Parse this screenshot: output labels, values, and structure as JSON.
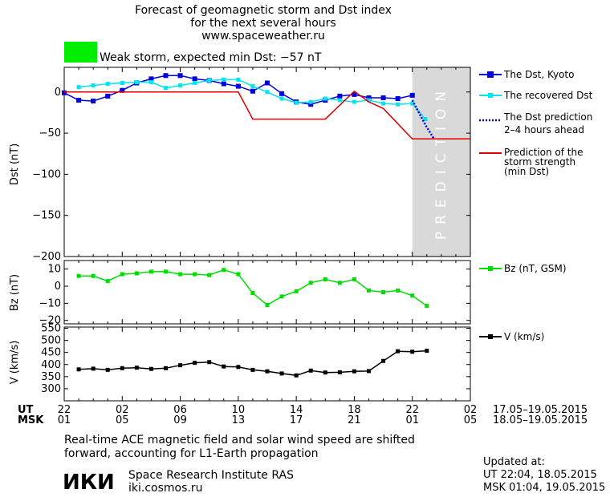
{
  "header": {
    "title_line1": "Forecast of geomagnetic storm and Dst index",
    "title_line2": "for the next several hours",
    "url": "www.spaceweather.ru",
    "storm_label": "Weak storm, expected min Dst: −57 nT",
    "storm_color": "#00ee00"
  },
  "colors": {
    "dst_kyoto": "#0000dd",
    "dst_recovered": "#00e5ee",
    "prediction_line": "#dd0000",
    "bz": "#00dd00",
    "v": "#000000",
    "prediction_band": "#d9d9d9"
  },
  "chart_data": [
    {
      "type": "line",
      "panel": "dst",
      "ylabel": "Dst (nT)",
      "ylim": [
        -200,
        30
      ],
      "yticks": [
        0,
        -50,
        -100,
        -150,
        -200
      ],
      "xlim": [
        0,
        28
      ],
      "prediction_region": [
        24,
        28
      ],
      "prediction_label": "PREDICTION",
      "series": [
        {
          "name": "The Dst, Kyoto",
          "markers": true,
          "x": [
            0,
            1,
            2,
            3,
            4,
            5,
            6,
            7,
            8,
            9,
            10,
            11,
            12,
            13,
            14,
            15,
            16,
            17,
            18,
            19,
            20,
            21,
            22,
            23,
            24
          ],
          "y": [
            -1,
            -10,
            -11,
            -5,
            2,
            11,
            16,
            20,
            20,
            16,
            14,
            10,
            7,
            1,
            11,
            -2,
            -12,
            -15,
            -10,
            -5,
            -3,
            -7,
            -7,
            -8,
            -4
          ]
        },
        {
          "name": "The recovered Dst",
          "markers": true,
          "x": [
            1,
            2,
            3,
            4,
            5,
            6,
            7,
            8,
            9,
            10,
            11,
            12,
            13,
            14,
            15,
            16,
            17,
            18,
            19,
            20,
            21,
            22,
            23,
            24,
            24.9
          ],
          "y": [
            6,
            8,
            10,
            11,
            12,
            12,
            5,
            8,
            11,
            14,
            15,
            15,
            7,
            0,
            -8,
            -13,
            -12,
            -8,
            -10,
            -12,
            -10,
            -14,
            -15,
            -14,
            -33
          ]
        },
        {
          "name": "The Dst prediction\n2–4 hours ahead",
          "dotted": true,
          "x": [
            24,
            24.9,
            25.5
          ],
          "y": [
            -10,
            -40,
            -57
          ]
        },
        {
          "name": "Prediction of the\nstorm strength\n(min Dst)",
          "x": [
            0,
            3,
            12,
            13,
            18,
            20,
            21,
            22,
            24,
            28
          ],
          "y": [
            0,
            0,
            0,
            -33,
            -33,
            1,
            -12,
            -20,
            -57,
            -57
          ]
        }
      ]
    },
    {
      "type": "line",
      "panel": "bz",
      "ylabel": "Bz (nT)",
      "ylim": [
        -22,
        15
      ],
      "yticks": [
        10,
        0,
        -10,
        -20
      ],
      "xlim": [
        0,
        28
      ],
      "series": [
        {
          "name": "Bz (nT, GSM)",
          "markers": true,
          "x": [
            1,
            2,
            3,
            4,
            5,
            6,
            7,
            8,
            9,
            10,
            11,
            12,
            13,
            14,
            15,
            16,
            17,
            18,
            19,
            20,
            21,
            22,
            23,
            24,
            25
          ],
          "y": [
            6,
            6,
            3,
            7,
            7.5,
            8.5,
            8.5,
            7,
            7,
            6.5,
            9.5,
            7,
            -4,
            -11,
            -6,
            -3,
            2,
            4,
            2,
            4,
            -2.5,
            -3.5,
            -2.5,
            -5.5,
            -11.5
          ]
        }
      ]
    },
    {
      "type": "line",
      "panel": "v",
      "ylabel": "V (km/s)",
      "ylim": [
        250,
        555
      ],
      "yticks": [
        550,
        500,
        450,
        400,
        350,
        300
      ],
      "ytick_labels": [
        "550",
        "500",
        "450",
        "400",
        "350",
        "300"
      ],
      "xlim": [
        0,
        28
      ],
      "series": [
        {
          "name": "V (km/s)",
          "markers": true,
          "x": [
            1,
            2,
            3,
            4,
            5,
            6,
            7,
            8,
            9,
            10,
            11,
            12,
            13,
            14,
            15,
            16,
            17,
            18,
            19,
            20,
            21,
            22,
            23,
            24,
            25
          ],
          "y": [
            380,
            383,
            378,
            385,
            387,
            382,
            385,
            397,
            407,
            410,
            392,
            390,
            378,
            372,
            363,
            355,
            375,
            367,
            368,
            372,
            373,
            415,
            455,
            453,
            457
          ]
        }
      ]
    }
  ],
  "xaxis": {
    "ut_label": "UT",
    "msk_label": "MSK",
    "ut_ticks": [
      "22",
      "02",
      "06",
      "10",
      "14",
      "18",
      "22",
      "02"
    ],
    "msk_ticks": [
      "01",
      "05",
      "09",
      "13",
      "17",
      "21",
      "01",
      "05"
    ],
    "tick_x": [
      0,
      4,
      8,
      12,
      16,
      20,
      24,
      28
    ],
    "ut_range": "17.05–19.05.2015",
    "msk_range": "18.05–19.05.2015"
  },
  "footer": {
    "note_line1": "Real-time ACE magnetic field and solar wind speed are shifted",
    "note_line2": "forward, accounting for L1-Earth propagation",
    "logo": "ИКИ",
    "institute": "Space Research Institute RAS",
    "site": "iki.cosmos.ru",
    "updated_label": "Updated at:",
    "updated_ut": "UT   22:04, 18.05.2015",
    "updated_msk": "MSK 01:04, 19.05.2015"
  }
}
